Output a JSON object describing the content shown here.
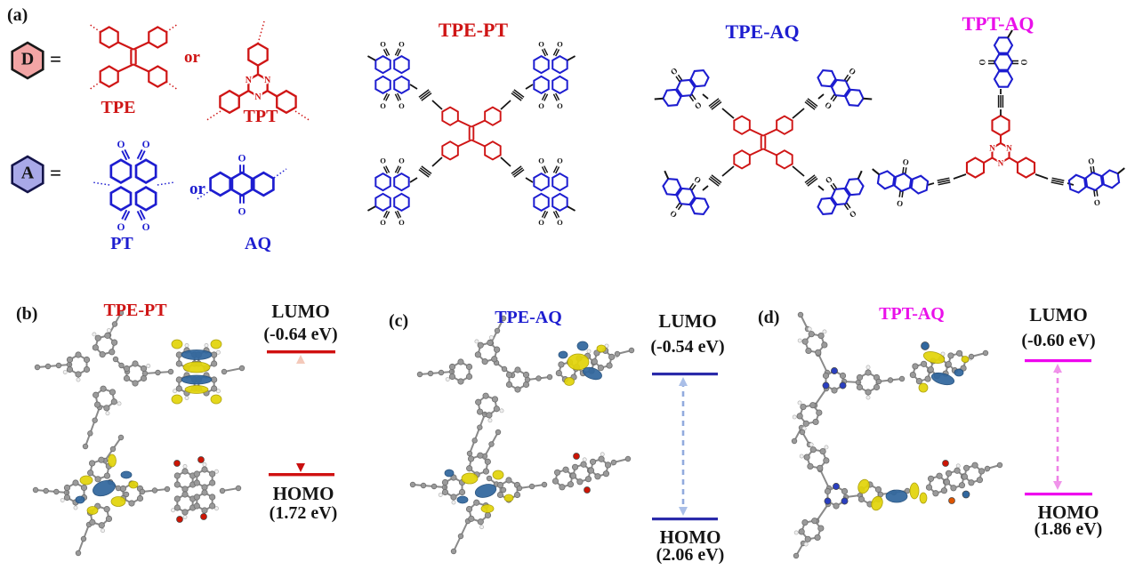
{
  "colors": {
    "red": "#cf1515",
    "blue": "#1d1dd0",
    "magenta": "#ea10ea",
    "black": "#151515",
    "d_fill": "#f2a5a5",
    "a_fill": "#a9a9e8",
    "level_red": "#d01010",
    "level_blue": "#2a2aaa",
    "level_magenta": "#ee00ee",
    "orb_yellow": "#e3d50a",
    "orb_blue": "#31679e",
    "atom_gray": "#9a9a9a",
    "atom_red": "#cc1505",
    "atom_blue": "#2a3fbf"
  },
  "atom_labels": {
    "o": "O",
    "n": "N"
  },
  "panel_a": {
    "label": "(a)",
    "donor_symbol": "D",
    "acceptor_symbol": "A",
    "equals_donor": "=",
    "equals_acceptor": "=",
    "or_donor": "or",
    "or_acceptor": "or",
    "tpe_label": "TPE",
    "tpt_label": "TPT",
    "pt_label": "PT",
    "aq_label": "AQ",
    "titles": {
      "tpe_pt": "TPE-PT",
      "tpe_aq": "TPE-AQ",
      "tpt_aq": "TPT-AQ"
    }
  },
  "panel_b": {
    "label": "(b)",
    "title": "TPE-PT",
    "lumo_label": "LUMO",
    "lumo_value": "(-0.64 eV)",
    "homo_label": "HOMO",
    "homo_value": "(1.72 eV)"
  },
  "panel_c": {
    "label": "(c)",
    "title": "TPE-AQ",
    "lumo_label": "LUMO",
    "lumo_value": "(-0.54 eV)",
    "homo_label": "HOMO",
    "homo_value": "(2.06 eV)"
  },
  "panel_d": {
    "label": "(d)",
    "title": "TPT-AQ",
    "lumo_label": "LUMO",
    "lumo_value": "(-0.60 eV)",
    "homo_label": "HOMO",
    "homo_value": "(1.86 eV)"
  }
}
